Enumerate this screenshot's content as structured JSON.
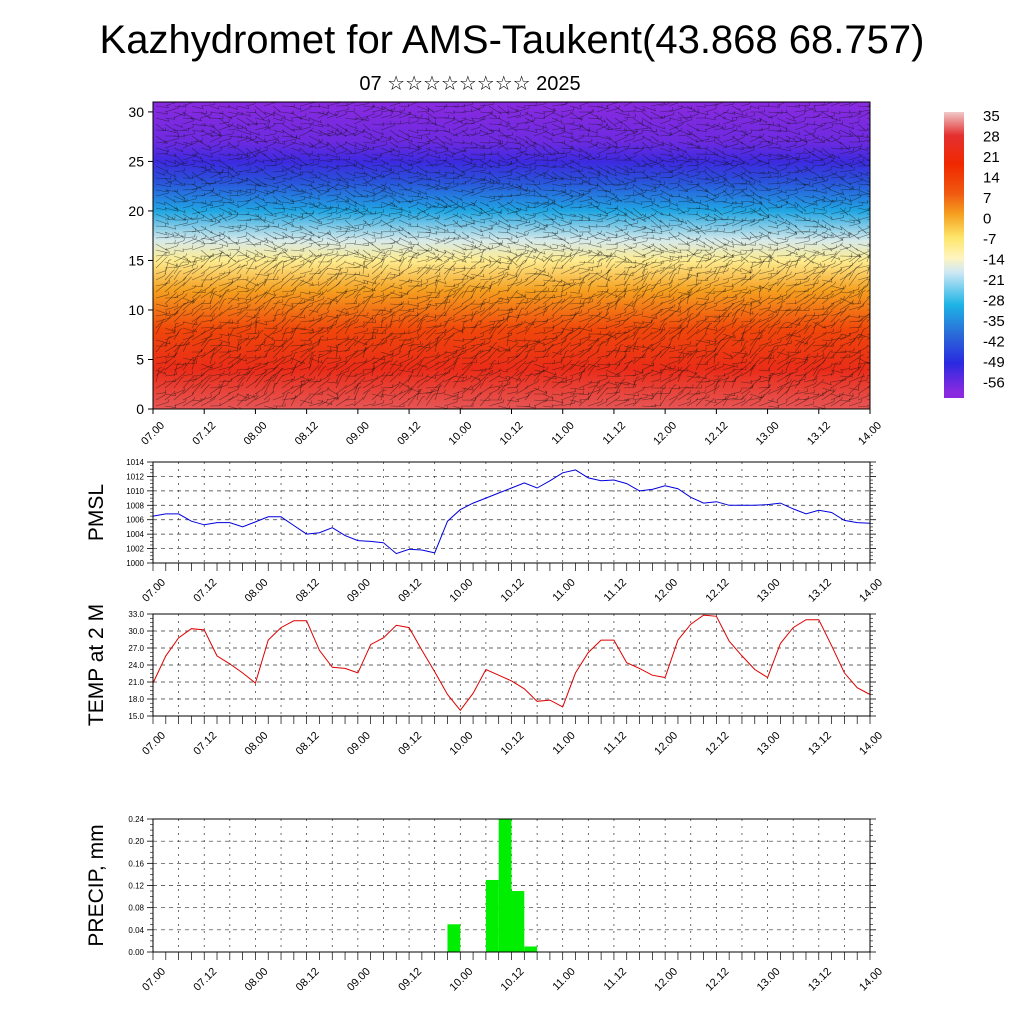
{
  "header": {
    "title": "Kazhydromet for AMS-Taukent(43.868 68.757)",
    "subtitle": "07 ☆☆☆☆☆☆☆☆ 2025"
  },
  "time_ticks": [
    "07.00",
    "07.12",
    "08.00",
    "08.12",
    "09.00",
    "09.12",
    "10.00",
    "10.12",
    "11.00",
    "11.12",
    "12.00",
    "12.12",
    "13.00",
    "13.12",
    "14.00"
  ],
  "chart_data": [
    {
      "type": "heatmap",
      "xlabel": "",
      "ylabel": "",
      "x_ticks": [
        "07.00",
        "07.12",
        "08.00",
        "08.12",
        "09.00",
        "09.12",
        "10.00",
        "10.12",
        "11.00",
        "11.12",
        "12.00",
        "12.12",
        "13.00",
        "13.12",
        "14.00"
      ],
      "y_ticks": [
        0,
        5,
        10,
        15,
        20,
        25,
        30
      ],
      "ylim": [
        0,
        31
      ],
      "colorbar_labels": [
        "35",
        "28",
        "21",
        "14",
        "7",
        "0",
        "-7",
        "-14",
        "-21",
        "-28",
        "-35",
        "-42",
        "-49",
        "-56"
      ],
      "colorbar_range": [
        -60,
        38
      ],
      "overlay": "wind barbs",
      "color_stops": [
        {
          "value": 38,
          "color": "#f0c8c8"
        },
        {
          "value": 30,
          "color": "#e43030"
        },
        {
          "value": 20,
          "color": "#f02800"
        },
        {
          "value": 10,
          "color": "#f05a10"
        },
        {
          "value": 3,
          "color": "#f5a020"
        },
        {
          "value": -5,
          "color": "#fde66a"
        },
        {
          "value": -12,
          "color": "#fff4c0"
        },
        {
          "value": -17,
          "color": "#cde8f5"
        },
        {
          "value": -28,
          "color": "#1eb4e6"
        },
        {
          "value": -38,
          "color": "#2a6cd8"
        },
        {
          "value": -48,
          "color": "#2a2ae0"
        },
        {
          "value": -58,
          "color": "#8a2ae0"
        }
      ],
      "vertical_profile": [
        {
          "level": 0,
          "value": 32
        },
        {
          "level": 4,
          "value": 25
        },
        {
          "level": 8,
          "value": 14
        },
        {
          "level": 12,
          "value": 3
        },
        {
          "level": 15,
          "value": -8
        },
        {
          "level": 17,
          "value": -16
        },
        {
          "level": 20,
          "value": -30
        },
        {
          "level": 23,
          "value": -42
        },
        {
          "level": 25,
          "value": -50
        },
        {
          "level": 27,
          "value": -55
        },
        {
          "level": 31,
          "value": -58
        }
      ]
    },
    {
      "type": "line",
      "ylabel": "PMSL",
      "ylim": [
        1000,
        1014
      ],
      "y_ticks": [
        "1000",
        "1002",
        "1004",
        "1006",
        "1008",
        "1010",
        "1012",
        "1014"
      ],
      "x_ticks": [
        "07.00",
        "07.12",
        "08.00",
        "08.12",
        "09.00",
        "09.12",
        "10.00",
        "10.12",
        "11.00",
        "11.12",
        "12.00",
        "12.12",
        "13.00",
        "13.12",
        "14.00"
      ],
      "series": [
        {
          "color": "#0000dd",
          "x": [
            0,
            3,
            6,
            9,
            12,
            15,
            18,
            21,
            24,
            27,
            30,
            33,
            36,
            39,
            42,
            45,
            48,
            51,
            54,
            57,
            60,
            63,
            66,
            69,
            72,
            75,
            78,
            81,
            84,
            87,
            90,
            93,
            96,
            99,
            102,
            105,
            108,
            111,
            114,
            117,
            120,
            123,
            126,
            129,
            132,
            135,
            138,
            141,
            144,
            147,
            150,
            153,
            156,
            159,
            162,
            165,
            168
          ],
          "values": [
            1006.5,
            1006.8,
            1006.8,
            1005.8,
            1005.3,
            1005.6,
            1005.6,
            1005.0,
            1005.7,
            1006.4,
            1006.4,
            1005.2,
            1004.0,
            1004.2,
            1004.9,
            1003.8,
            1003.1,
            1003.0,
            1002.8,
            1001.3,
            1001.9,
            1001.8,
            1001.4,
            1005.8,
            1007.4,
            1008.3,
            1009.0,
            1009.7,
            1010.4,
            1011.1,
            1010.4,
            1011.4,
            1012.5,
            1012.9,
            1011.8,
            1011.4,
            1011.5,
            1011.0,
            1010.0,
            1010.2,
            1010.7,
            1010.3,
            1009.1,
            1008.3,
            1008.5,
            1008.0,
            1008.0,
            1008.0,
            1008.1,
            1008.3,
            1007.5,
            1006.8,
            1007.3,
            1007.0,
            1005.9,
            1005.6,
            1005.5
          ]
        }
      ]
    },
    {
      "type": "line",
      "ylabel": "TEMP at 2 M",
      "ylim": [
        15,
        33
      ],
      "y_ticks": [
        "15.0",
        "18.0",
        "21.0",
        "24.0",
        "27.0",
        "30.0",
        "33.0"
      ],
      "x_ticks": [
        "07.00",
        "07.12",
        "08.00",
        "08.12",
        "09.00",
        "09.12",
        "10.00",
        "10.12",
        "11.00",
        "11.12",
        "12.00",
        "12.12",
        "13.00",
        "13.12",
        "14.00"
      ],
      "series": [
        {
          "color": "#dd0000",
          "x": [
            0,
            3,
            6,
            9,
            12,
            15,
            18,
            21,
            24,
            27,
            30,
            33,
            36,
            39,
            42,
            45,
            48,
            51,
            54,
            57,
            60,
            63,
            66,
            69,
            72,
            75,
            78,
            81,
            84,
            87,
            90,
            93,
            96,
            99,
            102,
            105,
            108,
            111,
            114,
            117,
            120,
            123,
            126,
            129,
            132,
            135,
            138,
            141,
            144,
            147,
            150,
            153,
            156,
            159,
            162,
            165,
            168
          ],
          "values": [
            20.8,
            25.6,
            28.8,
            30.4,
            30.2,
            25.6,
            24.2,
            22.6,
            20.8,
            28.4,
            30.6,
            31.8,
            31.8,
            26.6,
            23.6,
            23.4,
            22.6,
            27.6,
            28.8,
            31.0,
            30.6,
            26.6,
            22.8,
            18.8,
            16.0,
            19.0,
            23.2,
            22.2,
            21.2,
            19.8,
            17.6,
            17.8,
            16.6,
            22.6,
            26.2,
            28.4,
            28.4,
            24.4,
            23.4,
            22.2,
            21.8,
            28.4,
            31.2,
            32.8,
            32.6,
            28.2,
            25.6,
            23.2,
            21.8,
            27.8,
            30.6,
            32.0,
            32.0,
            27.4,
            22.6,
            20.0,
            18.8
          ]
        }
      ]
    },
    {
      "type": "bar",
      "ylabel": "PRECIP, mm",
      "ylim": [
        0,
        0.24
      ],
      "y_ticks": [
        "0.00",
        "0.04",
        "0.08",
        "0.12",
        "0.16",
        "0.20",
        "0.24"
      ],
      "x_ticks": [
        "07.00",
        "07.12",
        "08.00",
        "08.12",
        "09.00",
        "09.12",
        "10.00",
        "10.12",
        "11.00",
        "11.12",
        "12.00",
        "12.12",
        "13.00",
        "13.12",
        "14.00"
      ],
      "color": "#00ee00",
      "bars": [
        {
          "x_start": 69,
          "x_end": 72,
          "value": 0.05
        },
        {
          "x_start": 78,
          "x_end": 81,
          "value": 0.13
        },
        {
          "x_start": 81,
          "x_end": 84,
          "value": 0.24
        },
        {
          "x_start": 84,
          "x_end": 87,
          "value": 0.11
        },
        {
          "x_start": 87,
          "x_end": 90,
          "value": 0.01
        }
      ]
    }
  ]
}
